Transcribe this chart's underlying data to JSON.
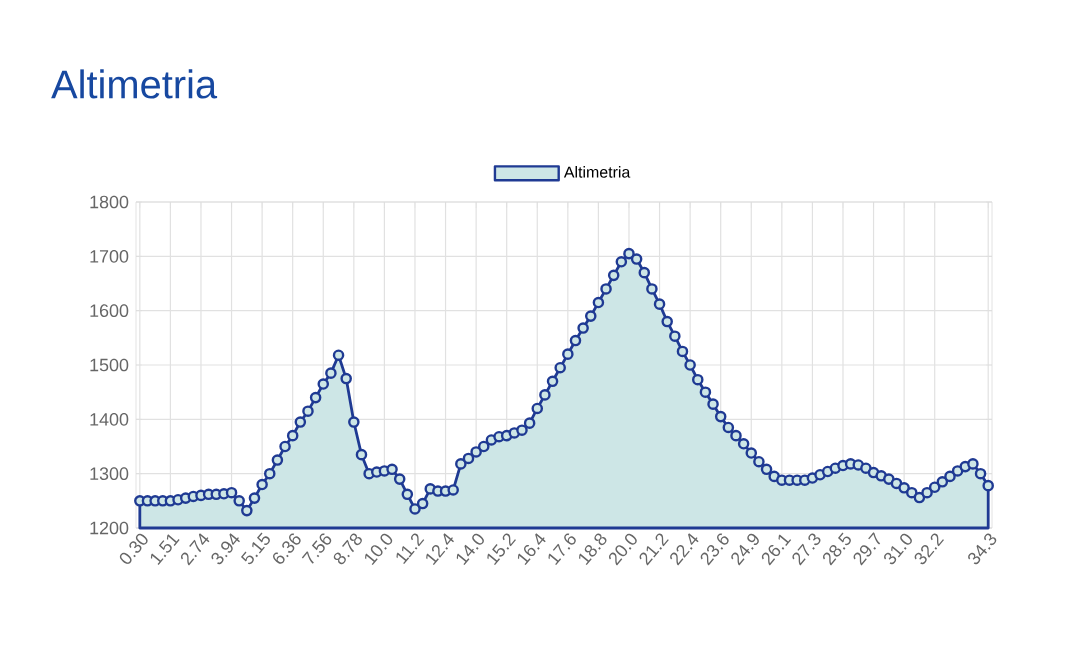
{
  "chart_data": {
    "type": "area",
    "title": "Altimetria",
    "categories": [
      "0.30",
      null,
      null,
      null,
      "1.51",
      null,
      null,
      null,
      "2.74",
      null,
      null,
      null,
      "3.94",
      null,
      null,
      null,
      "5.15",
      null,
      null,
      null,
      "6.36",
      null,
      null,
      null,
      "7.56",
      null,
      null,
      null,
      "8.78",
      null,
      null,
      null,
      "10.0",
      null,
      null,
      null,
      "11.2",
      null,
      null,
      null,
      "12.4",
      null,
      null,
      null,
      "14.0",
      null,
      null,
      null,
      "15.2",
      null,
      null,
      null,
      "16.4",
      null,
      null,
      null,
      "17.6",
      null,
      null,
      null,
      "18.8",
      null,
      null,
      null,
      "20.0",
      null,
      null,
      null,
      "21.2",
      null,
      null,
      null,
      "22.4",
      null,
      null,
      null,
      "23.6",
      null,
      null,
      null,
      "24.9",
      null,
      null,
      null,
      "26.1",
      null,
      null,
      null,
      "27.3",
      null,
      null,
      null,
      "28.5",
      null,
      null,
      null,
      "29.7",
      null,
      null,
      null,
      "31.0",
      null,
      null,
      null,
      "32.2",
      null,
      null,
      null,
      null,
      null,
      null,
      "34.3"
    ],
    "series": [
      {
        "name": "Altimetria",
        "color": "#1f3a93",
        "values": [
          1250,
          1250,
          1250,
          1250,
          1250,
          1252,
          1255,
          1258,
          1260,
          1262,
          1262,
          1263,
          1265,
          1250,
          1232,
          1255,
          1280,
          1300,
          1325,
          1350,
          1370,
          1395,
          1415,
          1440,
          1465,
          1485,
          1518,
          1475,
          1395,
          1335,
          1300,
          1303,
          1305,
          1308,
          1290,
          1262,
          1235,
          1245,
          1272,
          1268,
          1268,
          1270,
          1318,
          1328,
          1340,
          1350,
          1362,
          1368,
          1370,
          1375,
          1380,
          1393,
          1420,
          1445,
          1470,
          1495,
          1520,
          1545,
          1568,
          1590,
          1615,
          1640,
          1665,
          1690,
          1705,
          1695,
          1670,
          1640,
          1612,
          1580,
          1553,
          1525,
          1500,
          1473,
          1450,
          1428,
          1405,
          1385,
          1370,
          1355,
          1338,
          1322,
          1308,
          1295,
          1288,
          1288,
          1288,
          1288,
          1292,
          1298,
          1304,
          1310,
          1315,
          1318,
          1316,
          1310,
          1302,
          1296,
          1290,
          1282,
          1274,
          1265,
          1256,
          1265,
          1275,
          1285,
          1295,
          1305,
          1313,
          1318,
          1300,
          1278
        ]
      }
    ],
    "ylim": [
      1200,
      1800
    ],
    "yticks": [
      1200,
      1300,
      1400,
      1500,
      1600,
      1700,
      1800
    ],
    "grid": true,
    "legend": "top",
    "marker": "circle"
  }
}
